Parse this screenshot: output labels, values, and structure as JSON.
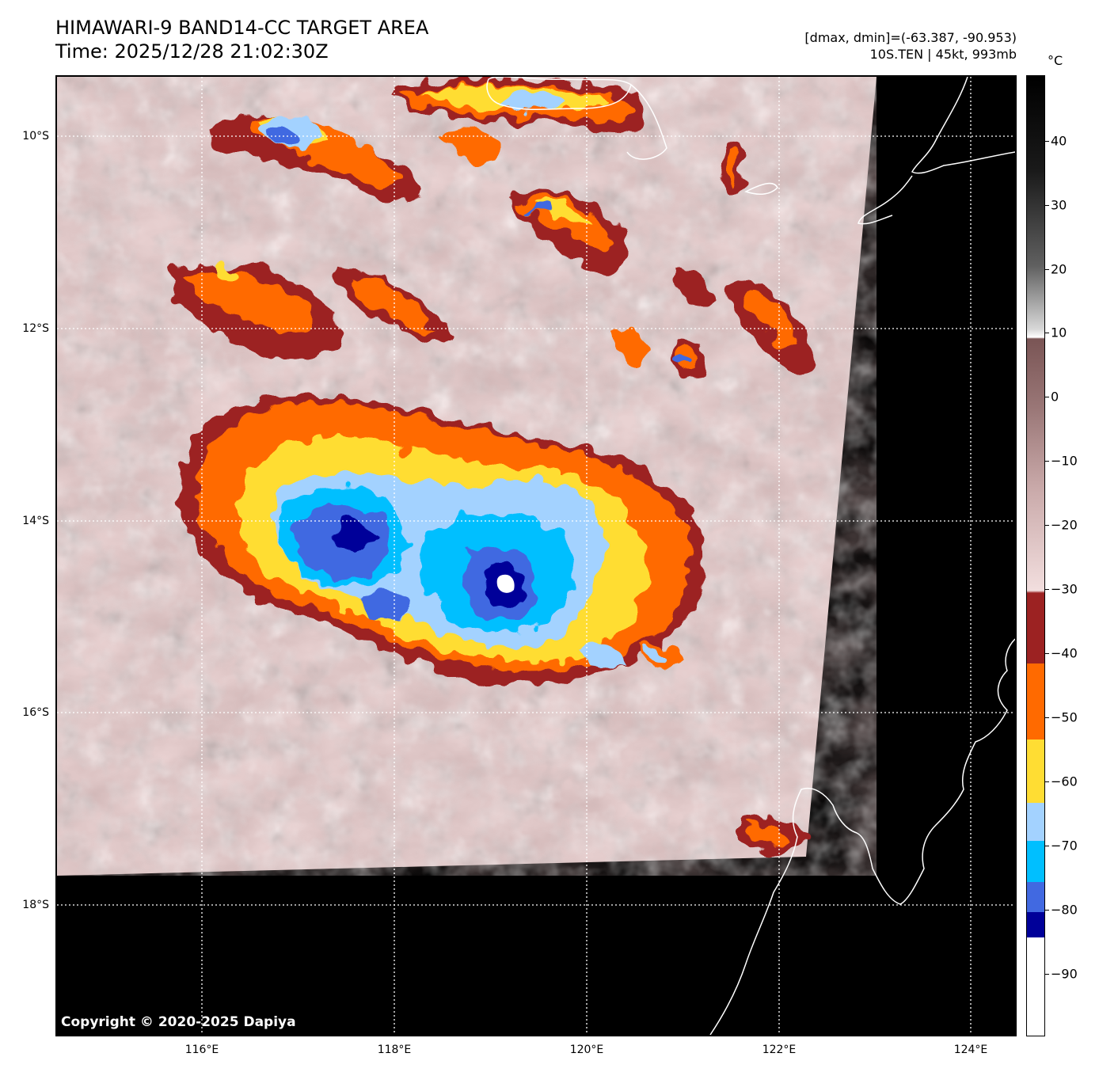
{
  "header": {
    "title_line1": "HIMAWARI-9 BAND14-CC TARGET AREA",
    "title_line2": "Time: 2025/12/28 21:02:30Z",
    "range_text": "[dmax, dmin]=(-63.387, -90.953)",
    "storm_text": "10S.TEN | 45kt, 993mb"
  },
  "map": {
    "copyright": "Copyright © 2020-2025 Dapiya",
    "lat_labels": [
      "10°S",
      "12°S",
      "14°S",
      "16°S",
      "18°S"
    ],
    "lon_labels": [
      "116°E",
      "118°E",
      "120°E",
      "122°E",
      "124°E"
    ],
    "background_color": "#000000",
    "gridline_color": "#ffffff",
    "coastline_color": "#ffffff"
  },
  "colorbar": {
    "unit": "°C",
    "ticks": [
      "40",
      "30",
      "20",
      "10",
      "0",
      "−10",
      "−20",
      "−30",
      "−40",
      "−50",
      "−60",
      "−70",
      "−80",
      "−90"
    ],
    "colors": {
      "warm_top": "#000000",
      "warm_mid": "#808080",
      "warm_bottom": "#ffffff",
      "brown": "#7a5555",
      "pink": "#f2dede",
      "dark_red": "#9c2222",
      "orange": "#ff6a00",
      "yellow": "#ffdd33",
      "light_blue": "#a3d2ff",
      "cyan": "#00bfff",
      "blue": "#4169e1",
      "navy": "#000099",
      "white": "#ffffff"
    }
  }
}
